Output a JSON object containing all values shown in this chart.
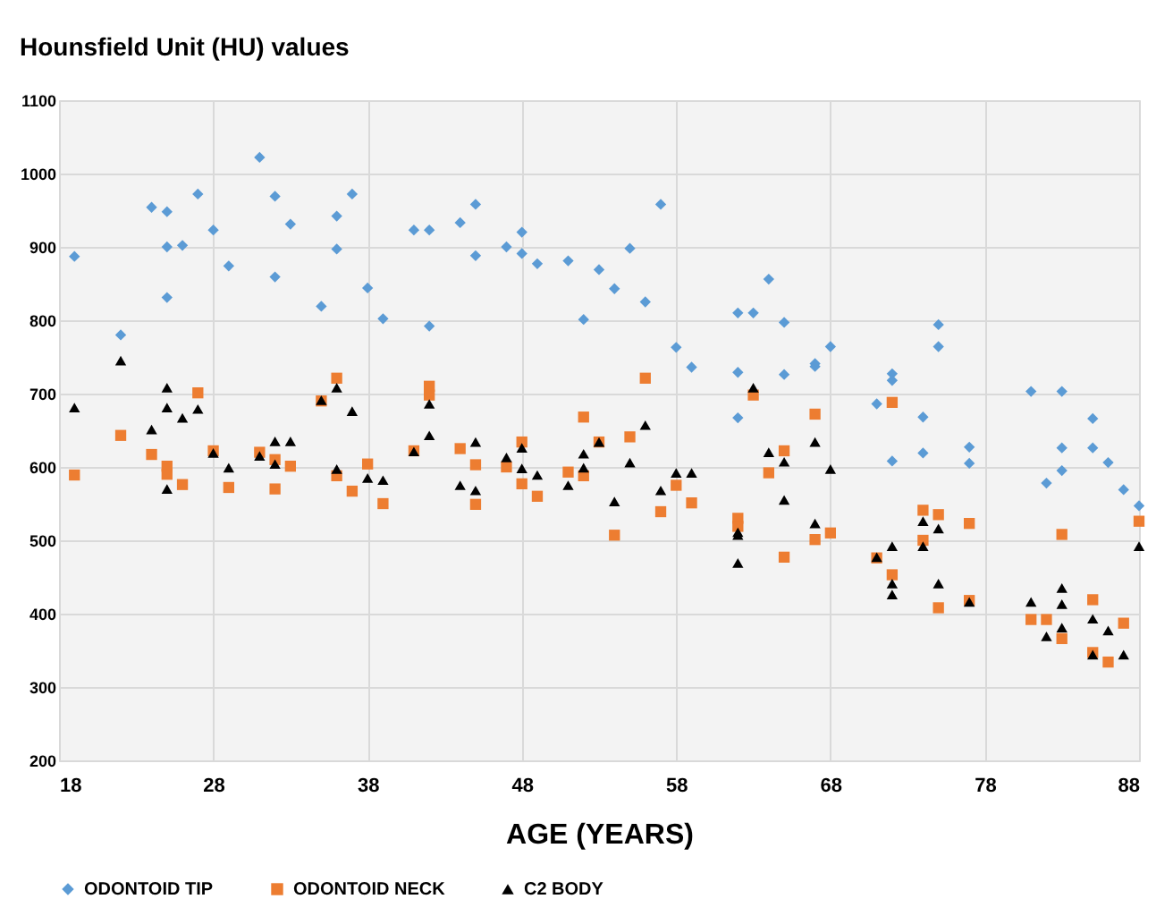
{
  "chart_data": {
    "type": "scatter",
    "title": "Hounsfield Unit (HU) values",
    "xlabel": "AGE (YEARS)",
    "xlim": [
      18,
      88
    ],
    "xticks": [
      18,
      28,
      38,
      48,
      58,
      68,
      78,
      88
    ],
    "ylim": [
      200,
      1100
    ],
    "yticks": [
      200,
      300,
      400,
      500,
      600,
      700,
      800,
      900,
      1000,
      1100
    ],
    "grid": true,
    "legend": "bottom",
    "series": [
      {
        "name": "ODONTOID TIP",
        "color": "#5b9bd5",
        "marker": "diamond",
        "x": [
          19,
          22,
          24,
          25,
          25,
          26,
          25,
          27,
          28,
          29,
          31,
          32,
          32,
          33,
          35,
          36,
          36,
          37,
          38,
          39,
          41,
          42,
          42,
          44,
          45,
          45,
          47,
          48,
          48,
          49,
          51,
          52,
          53,
          54,
          55,
          56,
          57,
          58,
          59,
          62,
          63,
          62,
          62,
          64,
          65,
          65,
          67,
          67,
          68,
          71,
          72,
          72,
          72,
          74,
          74,
          75,
          75,
          77,
          77,
          81,
          82,
          83,
          83,
          83,
          85,
          85,
          86,
          87,
          88
        ],
        "values": [
          887,
          780,
          954,
          948,
          900,
          902,
          831,
          972,
          923,
          874,
          1022,
          969,
          859,
          931,
          819,
          942,
          897,
          972,
          844,
          802,
          923,
          923,
          792,
          933,
          958,
          888,
          900,
          920,
          891,
          877,
          881,
          801,
          869,
          843,
          898,
          825,
          958,
          763,
          736,
          810,
          810,
          729,
          667,
          856,
          797,
          726,
          741,
          737,
          764,
          686,
          727,
          718,
          608,
          668,
          619,
          794,
          764,
          627,
          605,
          703,
          578,
          703,
          626,
          595,
          666,
          626,
          606,
          569,
          547
        ]
      },
      {
        "name": "ODONTOID NECK",
        "color": "#ed7d31",
        "marker": "square",
        "x": [
          19,
          22,
          24,
          25,
          25,
          26,
          27,
          28,
          29,
          31,
          32,
          32,
          33,
          35,
          36,
          36,
          37,
          38,
          39,
          41,
          42,
          42,
          44,
          45,
          45,
          47,
          48,
          48,
          49,
          51,
          52,
          52,
          53,
          54,
          55,
          56,
          57,
          58,
          59,
          62,
          62,
          63,
          64,
          65,
          65,
          67,
          67,
          68,
          71,
          72,
          72,
          74,
          74,
          75,
          75,
          77,
          77,
          81,
          82,
          83,
          83,
          85,
          85,
          86,
          87,
          88
        ],
        "values": [
          589,
          643,
          617,
          601,
          590,
          576,
          701,
          622,
          572,
          620,
          610,
          570,
          601,
          690,
          721,
          588,
          567,
          604,
          550,
          622,
          710,
          698,
          625,
          603,
          549,
          600,
          634,
          577,
          560,
          593,
          668,
          588,
          634,
          507,
          641,
          721,
          539,
          575,
          551,
          530,
          519,
          698,
          592,
          622,
          477,
          672,
          501,
          510,
          476,
          688,
          453,
          541,
          500,
          535,
          408,
          523,
          418,
          392,
          392,
          508,
          366,
          419,
          347,
          334,
          387,
          526
        ]
      },
      {
        "name": "C2 BODY",
        "color": "#000000",
        "marker": "triangle",
        "x": [
          19,
          22,
          24,
          25,
          25,
          25,
          26,
          27,
          28,
          29,
          31,
          32,
          32,
          33,
          35,
          36,
          36,
          37,
          38,
          39,
          41,
          42,
          42,
          44,
          45,
          45,
          47,
          48,
          48,
          49,
          51,
          52,
          52,
          53,
          54,
          55,
          56,
          57,
          58,
          59,
          62,
          62,
          62,
          63,
          64,
          65,
          65,
          67,
          67,
          68,
          71,
          72,
          72,
          72,
          74,
          74,
          75,
          75,
          77,
          81,
          82,
          83,
          83,
          83,
          85,
          85,
          86,
          87,
          88
        ],
        "values": [
          681,
          745,
          651,
          708,
          681,
          570,
          667,
          679,
          619,
          599,
          615,
          635,
          604,
          635,
          691,
          708,
          597,
          676,
          585,
          582,
          621,
          686,
          643,
          575,
          634,
          568,
          613,
          626,
          598,
          589,
          575,
          618,
          599,
          634,
          553,
          606,
          657,
          568,
          592,
          592,
          511,
          507,
          469,
          708,
          620,
          607,
          555,
          634,
          523,
          597,
          477,
          492,
          441,
          426,
          526,
          492,
          516,
          441,
          416,
          416,
          369,
          435,
          413,
          381,
          393,
          344,
          377,
          344,
          492
        ]
      }
    ]
  }
}
